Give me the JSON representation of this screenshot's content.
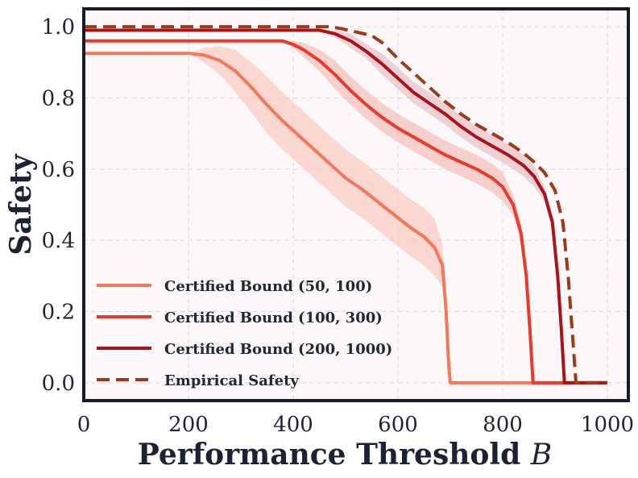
{
  "chart_data": {
    "type": "line",
    "xlabel": "Performance Threshold",
    "xlabel_symbol": "B",
    "ylabel": "Safety",
    "xlim": [
      0,
      1040
    ],
    "ylim": [
      -0.05,
      1.05
    ],
    "xticks": [
      0,
      200,
      400,
      600,
      800,
      1000
    ],
    "yticks": [
      0.0,
      0.2,
      0.4,
      0.6,
      0.8,
      1.0
    ],
    "xtick_labels": [
      "0",
      "200",
      "400",
      "600",
      "800",
      "1000"
    ],
    "ytick_labels": [
      "0.0",
      "0.2",
      "0.4",
      "0.6",
      "0.8",
      "1.0"
    ],
    "grid": true,
    "legend_position": "lower-left",
    "series": [
      {
        "name": "Certified Bound (50, 100)",
        "color": "#f4775a",
        "dashed": false,
        "band_color": "#f9c3b6",
        "x": [
          0,
          200,
          230,
          260,
          290,
          320,
          350,
          380,
          410,
          440,
          470,
          500,
          530,
          560,
          590,
          620,
          650,
          670,
          685,
          692,
          697,
          700,
          1000
        ],
        "y": [
          0.925,
          0.925,
          0.92,
          0.905,
          0.875,
          0.83,
          0.78,
          0.735,
          0.695,
          0.655,
          0.615,
          0.575,
          0.545,
          0.51,
          0.475,
          0.44,
          0.41,
          0.38,
          0.33,
          0.2,
          0.05,
          0.0,
          0.0
        ],
        "band_width": [
          0,
          0,
          0.02,
          0.04,
          0.06,
          0.07,
          0.08,
          0.08,
          0.08,
          0.08,
          0.08,
          0.08,
          0.08,
          0.08,
          0.08,
          0.08,
          0.08,
          0.08,
          0.06,
          0.04,
          0.01,
          0,
          0
        ]
      },
      {
        "name": "Certified Bound (100, 300)",
        "color": "#e83a2e",
        "dashed": false,
        "band_color": "#f3b6ae",
        "x": [
          0,
          380,
          400,
          420,
          450,
          480,
          510,
          540,
          570,
          600,
          630,
          660,
          690,
          720,
          750,
          780,
          800,
          820,
          835,
          845,
          852,
          858,
          1000
        ],
        "y": [
          0.96,
          0.96,
          0.95,
          0.935,
          0.905,
          0.865,
          0.82,
          0.78,
          0.745,
          0.715,
          0.69,
          0.665,
          0.64,
          0.62,
          0.6,
          0.575,
          0.55,
          0.5,
          0.42,
          0.3,
          0.15,
          0.0,
          0.0
        ],
        "band_width": [
          0,
          0,
          0.01,
          0.02,
          0.03,
          0.04,
          0.04,
          0.04,
          0.04,
          0.04,
          0.04,
          0.04,
          0.04,
          0.04,
          0.04,
          0.04,
          0.04,
          0.03,
          0.03,
          0.02,
          0.01,
          0,
          0
        ]
      },
      {
        "name": "Certified Bound (200, 1000)",
        "color": "#a8141c",
        "dashed": false,
        "band_color": "#e5b6bd",
        "x": [
          0,
          450,
          480,
          510,
          540,
          570,
          600,
          630,
          660,
          690,
          720,
          750,
          780,
          810,
          840,
          860,
          880,
          895,
          905,
          912,
          918,
          1000
        ],
        "y": [
          0.99,
          0.99,
          0.98,
          0.96,
          0.93,
          0.895,
          0.855,
          0.815,
          0.785,
          0.755,
          0.72,
          0.69,
          0.665,
          0.64,
          0.61,
          0.58,
          0.53,
          0.45,
          0.3,
          0.15,
          0.0,
          0.0
        ],
        "band_width": [
          0,
          0,
          0.01,
          0.02,
          0.02,
          0.03,
          0.03,
          0.03,
          0.03,
          0.03,
          0.03,
          0.03,
          0.03,
          0.03,
          0.03,
          0.03,
          0.02,
          0.02,
          0.01,
          0.01,
          0,
          0
        ]
      },
      {
        "name": "Empirical Safety",
        "color": "#9c3a1a",
        "dashed": true,
        "x": [
          0,
          470,
          490,
          520,
          550,
          570,
          600,
          630,
          660,
          690,
          720,
          750,
          780,
          810,
          840,
          860,
          880,
          900,
          915,
          925,
          935,
          940,
          1000
        ],
        "y": [
          1.0,
          1.0,
          0.995,
          0.985,
          0.975,
          0.955,
          0.91,
          0.87,
          0.83,
          0.79,
          0.755,
          0.725,
          0.7,
          0.675,
          0.645,
          0.62,
          0.59,
          0.54,
          0.45,
          0.3,
          0.1,
          0.0,
          0.0
        ]
      }
    ]
  }
}
